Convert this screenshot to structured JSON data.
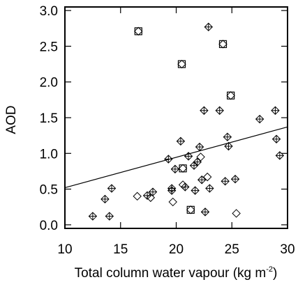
{
  "chart_data": {
    "type": "scatter",
    "xlabel": "Total column water vapour (kg m",
    "xlabel_sup": "-2",
    "xlabel_end": ")",
    "ylabel": "AOD",
    "xlim": [
      10,
      30
    ],
    "ylim": [
      -0.05,
      3.05
    ],
    "x_ticks": [
      10,
      15,
      20,
      25,
      30
    ],
    "x_tick_labels": [
      "10",
      "15",
      "20",
      "25",
      "30"
    ],
    "y_ticks": [
      0.0,
      0.5,
      1.0,
      1.5,
      2.0,
      2.5,
      3.0
    ],
    "y_tick_labels": [
      "0.0",
      "0.5",
      "1.0",
      "1.5",
      "2.0",
      "2.5",
      "3.0"
    ],
    "grid": false,
    "series": [
      {
        "marker": "diamond-plus",
        "points": [
          [
            12.5,
            0.12
          ],
          [
            13.6,
            0.36
          ],
          [
            14.2,
            0.51
          ],
          [
            14.0,
            0.12
          ],
          [
            17.4,
            0.41
          ],
          [
            17.9,
            0.46
          ],
          [
            19.3,
            0.92
          ],
          [
            19.6,
            0.51
          ],
          [
            19.6,
            0.48
          ],
          [
            19.9,
            0.78
          ],
          [
            20.4,
            1.17
          ],
          [
            20.8,
            0.53
          ],
          [
            21.1,
            0.96
          ],
          [
            21.6,
            0.83
          ],
          [
            21.7,
            0.48
          ],
          [
            21.9,
            0.88
          ],
          [
            22.1,
            1.09
          ],
          [
            22.3,
            0.63
          ],
          [
            22.5,
            1.6
          ],
          [
            22.6,
            0.18
          ],
          [
            22.9,
            2.77
          ],
          [
            23.0,
            0.51
          ],
          [
            23.9,
            1.6
          ],
          [
            24.4,
            0.61
          ],
          [
            24.6,
            1.23
          ],
          [
            24.7,
            1.1
          ],
          [
            25.3,
            0.64
          ],
          [
            27.5,
            1.48
          ],
          [
            28.9,
            1.6
          ],
          [
            29.0,
            1.2
          ],
          [
            29.3,
            0.97
          ]
        ]
      },
      {
        "marker": "diamond",
        "points": [
          [
            16.5,
            0.4
          ],
          [
            17.7,
            0.38
          ],
          [
            19.7,
            0.32
          ],
          [
            20.6,
            0.56
          ],
          [
            22.2,
            0.95
          ],
          [
            22.8,
            0.67
          ],
          [
            25.4,
            0.16
          ]
        ]
      },
      {
        "marker": "diamond-square",
        "points": [
          [
            16.6,
            2.71
          ],
          [
            20.5,
            2.25
          ],
          [
            24.2,
            2.53
          ],
          [
            24.9,
            1.81
          ],
          [
            20.6,
            0.79
          ],
          [
            21.3,
            0.21
          ]
        ]
      }
    ],
    "regression_line": {
      "x": [
        10,
        30
      ],
      "y": [
        0.52,
        1.37
      ]
    }
  }
}
